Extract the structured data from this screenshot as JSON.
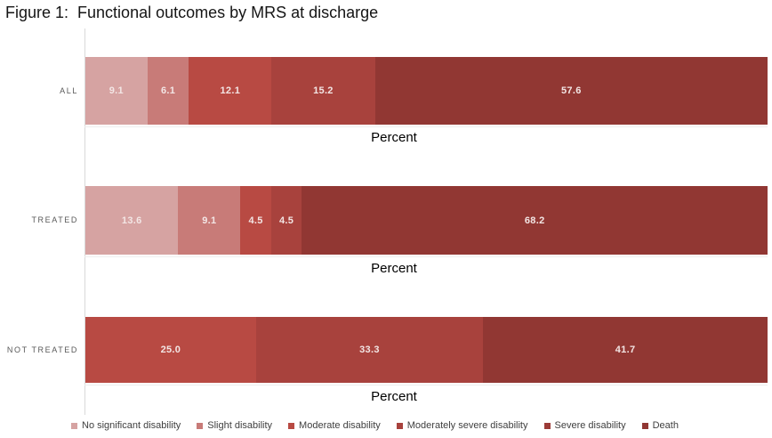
{
  "title": "Figure 1:  Functional outcomes by MRS at discharge",
  "colors": {
    "no_significant_disability": "#d6a3a2",
    "slight_disability": "#c87b78",
    "moderate_disability": "#b84a43",
    "moderately_severe_disability": "#a8423d",
    "severe_disability": "#9c3b37",
    "death": "#913733",
    "axis_line": "#d9d9d9",
    "row_label_text": "#595959",
    "value_label_text": "#f3e6e5",
    "legend_text": "#404040"
  },
  "chart_data": {
    "type": "bar",
    "orientation": "horizontal",
    "stacked": true,
    "title": "Figure 1:  Functional outcomes by MRS at discharge",
    "xlabel": "Percent",
    "ylabel": "",
    "xlim": [
      0,
      100
    ],
    "grid": false,
    "legend_position": "bottom",
    "categories": [
      "ALL",
      "TREATED",
      "NOT TREATED"
    ],
    "series": [
      {
        "name": "No significant disability",
        "color": "#d6a3a2",
        "values": [
          9.1,
          13.6,
          0
        ]
      },
      {
        "name": "Slight disability",
        "color": "#c87b78",
        "values": [
          6.1,
          9.1,
          0
        ]
      },
      {
        "name": "Moderate disability",
        "color": "#b84a43",
        "values": [
          12.1,
          4.5,
          25.0
        ]
      },
      {
        "name": "Moderately severe disability",
        "color": "#a8423d",
        "values": [
          15.2,
          4.5,
          33.3
        ]
      },
      {
        "name": "Severe disability",
        "color": "#9c3b37",
        "values": [
          0,
          0,
          0
        ]
      },
      {
        "name": "Death",
        "color": "#913733",
        "values": [
          57.6,
          68.2,
          41.7
        ]
      }
    ]
  },
  "rows": [
    {
      "label": "ALL",
      "xlabel": "Percent",
      "segments": [
        {
          "series": "No significant disability",
          "value": 9.1,
          "label": "9.1",
          "color": "#d6a3a2"
        },
        {
          "series": "Slight disability",
          "value": 6.1,
          "label": "6.1",
          "color": "#c87b78"
        },
        {
          "series": "Moderate disability",
          "value": 12.1,
          "label": "12.1",
          "color": "#b84a43"
        },
        {
          "series": "Moderately severe disability",
          "value": 15.2,
          "label": "15.2",
          "color": "#a8423d"
        },
        {
          "series": "Death",
          "value": 57.6,
          "label": "57.6",
          "color": "#913733"
        }
      ]
    },
    {
      "label": "TREATED",
      "xlabel": "Percent",
      "segments": [
        {
          "series": "No significant disability",
          "value": 13.6,
          "label": "13.6",
          "color": "#d6a3a2"
        },
        {
          "series": "Slight disability",
          "value": 9.1,
          "label": "9.1",
          "color": "#c87b78"
        },
        {
          "series": "Moderate disability",
          "value": 4.5,
          "label": "4.5",
          "color": "#b84a43"
        },
        {
          "series": "Moderately severe disability",
          "value": 4.5,
          "label": "4.5",
          "color": "#a8423d"
        },
        {
          "series": "Death",
          "value": 68.2,
          "label": "68.2",
          "color": "#913733"
        }
      ]
    },
    {
      "label": "NOT TREATED",
      "xlabel": "Percent",
      "segments": [
        {
          "series": "Moderate disability",
          "value": 25.0,
          "label": "25.0",
          "color": "#b84a43"
        },
        {
          "series": "Moderately severe disability",
          "value": 33.3,
          "label": "33.3",
          "color": "#a8423d"
        },
        {
          "series": "Death",
          "value": 41.7,
          "label": "41.7",
          "color": "#913733"
        }
      ]
    }
  ],
  "legend": {
    "items": [
      {
        "label": "No significant disability",
        "color": "#d6a3a2"
      },
      {
        "label": "Slight disability",
        "color": "#c87b78"
      },
      {
        "label": "Moderate disability",
        "color": "#b84a43"
      },
      {
        "label": "Moderately severe disability",
        "color": "#a8423d"
      },
      {
        "label": "Severe disability",
        "color": "#9c3b37"
      },
      {
        "label": "Death",
        "color": "#913733"
      }
    ]
  }
}
